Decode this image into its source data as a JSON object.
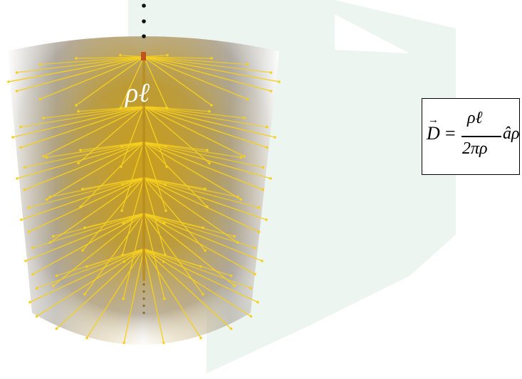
{
  "diagram": {
    "charge_label": "ρℓ",
    "formula": {
      "lhs": "D",
      "equals": "=",
      "numerator": "ρℓ",
      "denominator": "2πρ",
      "unit_vector": "âρ"
    },
    "colors": {
      "field_line": "#f5d020",
      "cylinder_core": "#c9a21a",
      "cylinder_edge": "#bfb9b0",
      "wall": "#eef5f1",
      "line_charge": "#1a1a1a"
    }
  }
}
